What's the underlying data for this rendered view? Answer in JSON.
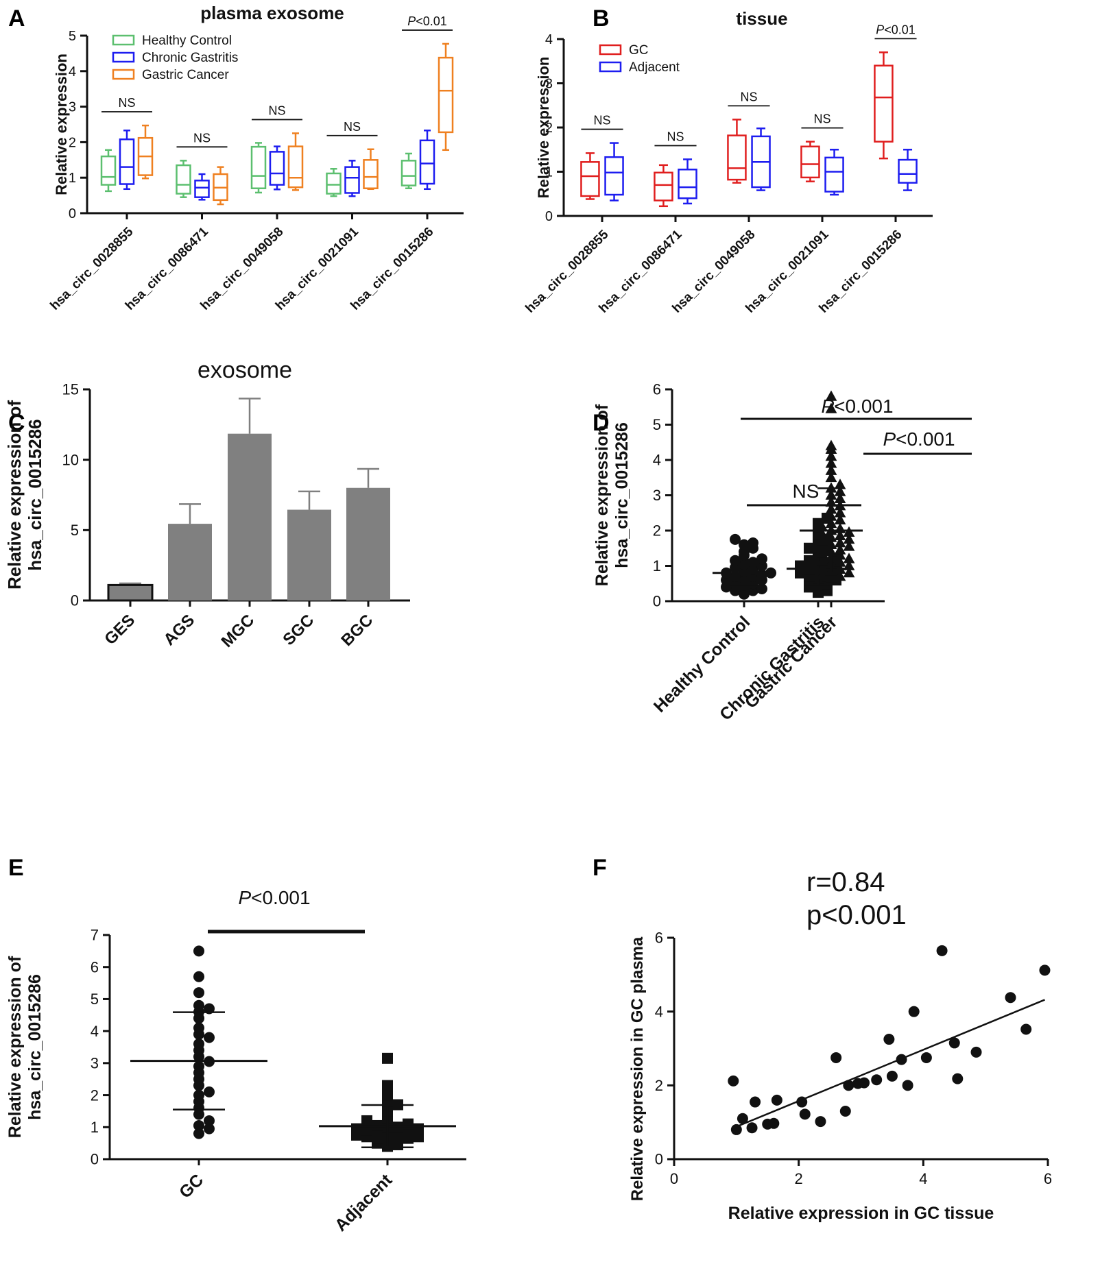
{
  "figure": {
    "panels": [
      {
        "letter": "A"
      },
      {
        "letter": "B"
      },
      {
        "letter": "C"
      },
      {
        "letter": "D"
      },
      {
        "letter": "E"
      },
      {
        "letter": "F"
      }
    ]
  },
  "colors": {
    "healthy": "#5cbf6f",
    "chronic": "#1d1df0",
    "gastric": "#ef8020",
    "gc_red": "#e01e1e",
    "adjacent_blue": "#1d1df0",
    "bar_fill": "#808080",
    "ink": "#111111"
  },
  "chart_data": [
    {
      "panel": "A",
      "type": "box",
      "title": "plasma exosome",
      "ylabel": "Relative expression",
      "ylim": [
        0,
        5
      ],
      "yticks": [
        0,
        1,
        2,
        3,
        4,
        5
      ],
      "categories": [
        "hsa_circ_0028855",
        "hsa_circ_0086471",
        "hsa_circ_0049058",
        "hsa_circ_0021091",
        "hsa_circ_0015286"
      ],
      "legend": [
        "Healthy Control",
        "Chronic Gastritis",
        "Gastric Cancer"
      ],
      "series": [
        {
          "name": "Healthy Control",
          "color_key": "healthy",
          "boxes": [
            {
              "min": 0.62,
              "q1": 0.8,
              "median": 1.02,
              "q3": 1.6,
              "max": 1.78
            },
            {
              "min": 0.45,
              "q1": 0.55,
              "median": 0.8,
              "q3": 1.35,
              "max": 1.48
            },
            {
              "min": 0.58,
              "q1": 0.7,
              "median": 1.05,
              "q3": 1.87,
              "max": 1.98
            },
            {
              "min": 0.48,
              "q1": 0.55,
              "median": 0.8,
              "q3": 1.12,
              "max": 1.25
            },
            {
              "min": 0.7,
              "q1": 0.78,
              "median": 1.05,
              "q3": 1.48,
              "max": 1.68
            }
          ]
        },
        {
          "name": "Chronic Gastritis",
          "color_key": "chronic",
          "boxes": [
            {
              "min": 0.68,
              "q1": 0.82,
              "median": 1.3,
              "q3": 2.08,
              "max": 2.33
            },
            {
              "min": 0.38,
              "q1": 0.45,
              "median": 0.72,
              "q3": 0.92,
              "max": 1.1
            },
            {
              "min": 0.67,
              "q1": 0.8,
              "median": 1.12,
              "q3": 1.73,
              "max": 1.88
            },
            {
              "min": 0.48,
              "q1": 0.57,
              "median": 1.0,
              "q3": 1.3,
              "max": 1.48
            },
            {
              "min": 0.68,
              "q1": 0.83,
              "median": 1.4,
              "q3": 2.05,
              "max": 2.33
            }
          ]
        },
        {
          "name": "Gastric Cancer",
          "color_key": "gastric",
          "boxes": [
            {
              "min": 0.98,
              "q1": 1.07,
              "median": 1.6,
              "q3": 2.12,
              "max": 2.47
            },
            {
              "min": 0.25,
              "q1": 0.37,
              "median": 0.72,
              "q3": 1.1,
              "max": 1.3
            },
            {
              "min": 0.65,
              "q1": 0.73,
              "median": 1.0,
              "q3": 1.88,
              "max": 2.25
            },
            {
              "min": 0.68,
              "q1": 0.7,
              "median": 1.02,
              "q3": 1.5,
              "max": 1.8
            },
            {
              "min": 1.78,
              "q1": 2.28,
              "median": 3.45,
              "q3": 4.38,
              "max": 4.77
            }
          ]
        }
      ],
      "annotations": [
        "NS",
        "NS",
        "NS",
        "NS",
        "P<0.01"
      ]
    },
    {
      "panel": "B",
      "type": "box",
      "title": "tissue",
      "ylabel": "Relative expression",
      "ylim": [
        0,
        4
      ],
      "yticks": [
        0,
        1,
        2,
        3,
        4
      ],
      "categories": [
        "hsa_circ_0028855",
        "hsa_circ_0086471",
        "hsa_circ_0049058",
        "hsa_circ_0021091",
        "hsa_circ_0015286"
      ],
      "legend": [
        "GC",
        "Adjacent"
      ],
      "series": [
        {
          "name": "GC",
          "color_key": "gc_red",
          "boxes": [
            {
              "min": 0.38,
              "q1": 0.45,
              "median": 0.9,
              "q3": 1.22,
              "max": 1.42
            },
            {
              "min": 0.22,
              "q1": 0.35,
              "median": 0.7,
              "q3": 0.98,
              "max": 1.15
            },
            {
              "min": 0.75,
              "q1": 0.82,
              "median": 1.08,
              "q3": 1.82,
              "max": 2.18
            },
            {
              "min": 0.78,
              "q1": 0.87,
              "median": 1.17,
              "q3": 1.57,
              "max": 1.68
            },
            {
              "min": 1.3,
              "q1": 1.68,
              "median": 2.68,
              "q3": 3.4,
              "max": 3.7
            }
          ]
        },
        {
          "name": "Adjacent",
          "color_key": "adjacent_blue",
          "boxes": [
            {
              "min": 0.35,
              "q1": 0.48,
              "median": 0.98,
              "q3": 1.33,
              "max": 1.65
            },
            {
              "min": 0.28,
              "q1": 0.4,
              "median": 0.65,
              "q3": 1.05,
              "max": 1.28
            },
            {
              "min": 0.58,
              "q1": 0.65,
              "median": 1.22,
              "q3": 1.8,
              "max": 1.98
            },
            {
              "min": 0.48,
              "q1": 0.55,
              "median": 1.0,
              "q3": 1.32,
              "max": 1.5
            },
            {
              "min": 0.58,
              "q1": 0.75,
              "median": 0.95,
              "q3": 1.27,
              "max": 1.5
            }
          ]
        }
      ],
      "annotations": [
        "NS",
        "NS",
        "NS",
        "NS",
        "P<0.01"
      ]
    },
    {
      "panel": "C",
      "type": "bar",
      "title": "exosome",
      "ylabel_lines": [
        "Relative expression of",
        "hsa_circ_0015286"
      ],
      "ylim": [
        0,
        15
      ],
      "yticks": [
        0,
        5,
        10,
        15
      ],
      "categories": [
        "GES",
        "AGS",
        "MGC",
        "SGC",
        "BGC"
      ],
      "values": [
        1.1,
        5.45,
        11.85,
        6.45,
        8.0
      ],
      "errors": [
        0.12,
        1.4,
        2.5,
        1.3,
        1.35
      ]
    },
    {
      "panel": "D",
      "type": "scatter",
      "ylabel_lines": [
        "Relative expression of",
        "hsa_circ_0015286"
      ],
      "ylim": [
        0,
        6
      ],
      "yticks": [
        0,
        1,
        2,
        3,
        4,
        5,
        6
      ],
      "categories": [
        "Healthy Control",
        "Chronic Gastritis",
        "Gastric Cancer"
      ],
      "markers": [
        "circle",
        "square",
        "triangle"
      ],
      "means": [
        0.8,
        0.92,
        2.0
      ],
      "sd": [
        0.38,
        0.5,
        1.2
      ],
      "points": [
        [
          0.2,
          0.25,
          0.3,
          0.3,
          0.35,
          0.4,
          0.45,
          0.5,
          0.55,
          0.6,
          0.6,
          0.65,
          0.7,
          0.7,
          0.75,
          0.8,
          0.8,
          0.85,
          0.9,
          0.95,
          1.0,
          1.05,
          1.1,
          1.15,
          1.2,
          1.3,
          1.4,
          1.5,
          1.6,
          1.65,
          1.75
        ],
        [
          0.25,
          0.3,
          0.4,
          0.45,
          0.5,
          0.55,
          0.6,
          0.65,
          0.7,
          0.7,
          0.75,
          0.8,
          0.85,
          0.85,
          0.9,
          0.95,
          1.0,
          1.05,
          1.1,
          1.15,
          1.2,
          1.3,
          1.4,
          1.45,
          1.5,
          1.6,
          1.75,
          1.9,
          2.1,
          2.2,
          2.35
        ],
        [
          0.65,
          0.7,
          0.75,
          0.8,
          0.85,
          0.9,
          0.95,
          1.0,
          1.05,
          1.1,
          1.15,
          1.2,
          1.25,
          1.3,
          1.35,
          1.4,
          1.45,
          1.5,
          1.55,
          1.6,
          1.65,
          1.7,
          1.75,
          1.8,
          1.85,
          1.9,
          1.95,
          2.0,
          2.05,
          2.1,
          2.2,
          2.3,
          2.4,
          2.5,
          2.6,
          2.7,
          2.8,
          2.9,
          3.0,
          3.1,
          3.2,
          3.3,
          3.5,
          3.7,
          3.9,
          4.1,
          4.3,
          4.4,
          5.45,
          5.8
        ]
      ],
      "annotations": [
        "NS",
        "P<0.001",
        "P<0.001"
      ]
    },
    {
      "panel": "E",
      "type": "scatter",
      "ylabel_lines": [
        "Relative expression of",
        "hsa_circ_0015286"
      ],
      "ylim": [
        0,
        7
      ],
      "yticks": [
        0,
        1,
        2,
        3,
        4,
        5,
        6,
        7
      ],
      "categories": [
        "GC",
        "Adjacent"
      ],
      "markers": [
        "circle",
        "square"
      ],
      "means": [
        3.07,
        1.03
      ],
      "sd": [
        1.52,
        0.66
      ],
      "points": [
        [
          0.8,
          0.95,
          1.05,
          1.2,
          1.4,
          1.6,
          1.8,
          2.0,
          2.1,
          2.3,
          2.5,
          2.7,
          2.9,
          3.05,
          3.2,
          3.4,
          3.6,
          3.8,
          3.9,
          4.1,
          4.4,
          4.6,
          4.7,
          4.8,
          5.2,
          5.7,
          6.5
        ],
        [
          0.4,
          0.45,
          0.5,
          0.55,
          0.6,
          0.65,
          0.65,
          0.7,
          0.7,
          0.75,
          0.8,
          0.8,
          0.85,
          0.85,
          0.9,
          0.95,
          0.95,
          1.0,
          1.0,
          1.05,
          1.1,
          1.2,
          1.3,
          1.5,
          1.7,
          1.8,
          2.0,
          2.3,
          3.15
        ]
      ],
      "annotations": [
        "P<0.001"
      ]
    },
    {
      "panel": "F",
      "type": "scatter",
      "annotation_lines": [
        "r=0.84",
        "p<0.001"
      ],
      "xlabel": "Relative expression in GC tissue",
      "ylabel": "Relative expression in GC plasma",
      "xlim": [
        0,
        6
      ],
      "ylim": [
        0,
        6
      ],
      "xticks": [
        0,
        2,
        4,
        6
      ],
      "yticks": [
        0,
        2,
        4,
        6
      ],
      "points": [
        [
          0.95,
          2.12
        ],
        [
          1.0,
          0.8
        ],
        [
          1.1,
          1.1
        ],
        [
          1.25,
          0.85
        ],
        [
          1.3,
          1.55
        ],
        [
          1.5,
          0.95
        ],
        [
          1.6,
          0.97
        ],
        [
          1.65,
          1.6
        ],
        [
          2.05,
          1.55
        ],
        [
          2.1,
          1.22
        ],
        [
          2.35,
          1.02
        ],
        [
          2.6,
          2.75
        ],
        [
          2.75,
          1.3
        ],
        [
          2.8,
          2.0
        ],
        [
          2.95,
          2.05
        ],
        [
          3.05,
          2.07
        ],
        [
          3.25,
          2.15
        ],
        [
          3.45,
          3.25
        ],
        [
          3.5,
          2.25
        ],
        [
          3.65,
          2.7
        ],
        [
          3.75,
          2.0
        ],
        [
          3.85,
          4.0
        ],
        [
          4.05,
          2.75
        ],
        [
          4.3,
          5.65
        ],
        [
          4.5,
          3.15
        ],
        [
          4.55,
          2.18
        ],
        [
          4.85,
          2.9
        ],
        [
          5.4,
          4.38
        ],
        [
          5.65,
          3.52
        ],
        [
          5.95,
          5.12
        ]
      ],
      "fit": {
        "x": [
          1.0,
          5.95
        ],
        "y": [
          0.88,
          4.32
        ]
      }
    }
  ]
}
